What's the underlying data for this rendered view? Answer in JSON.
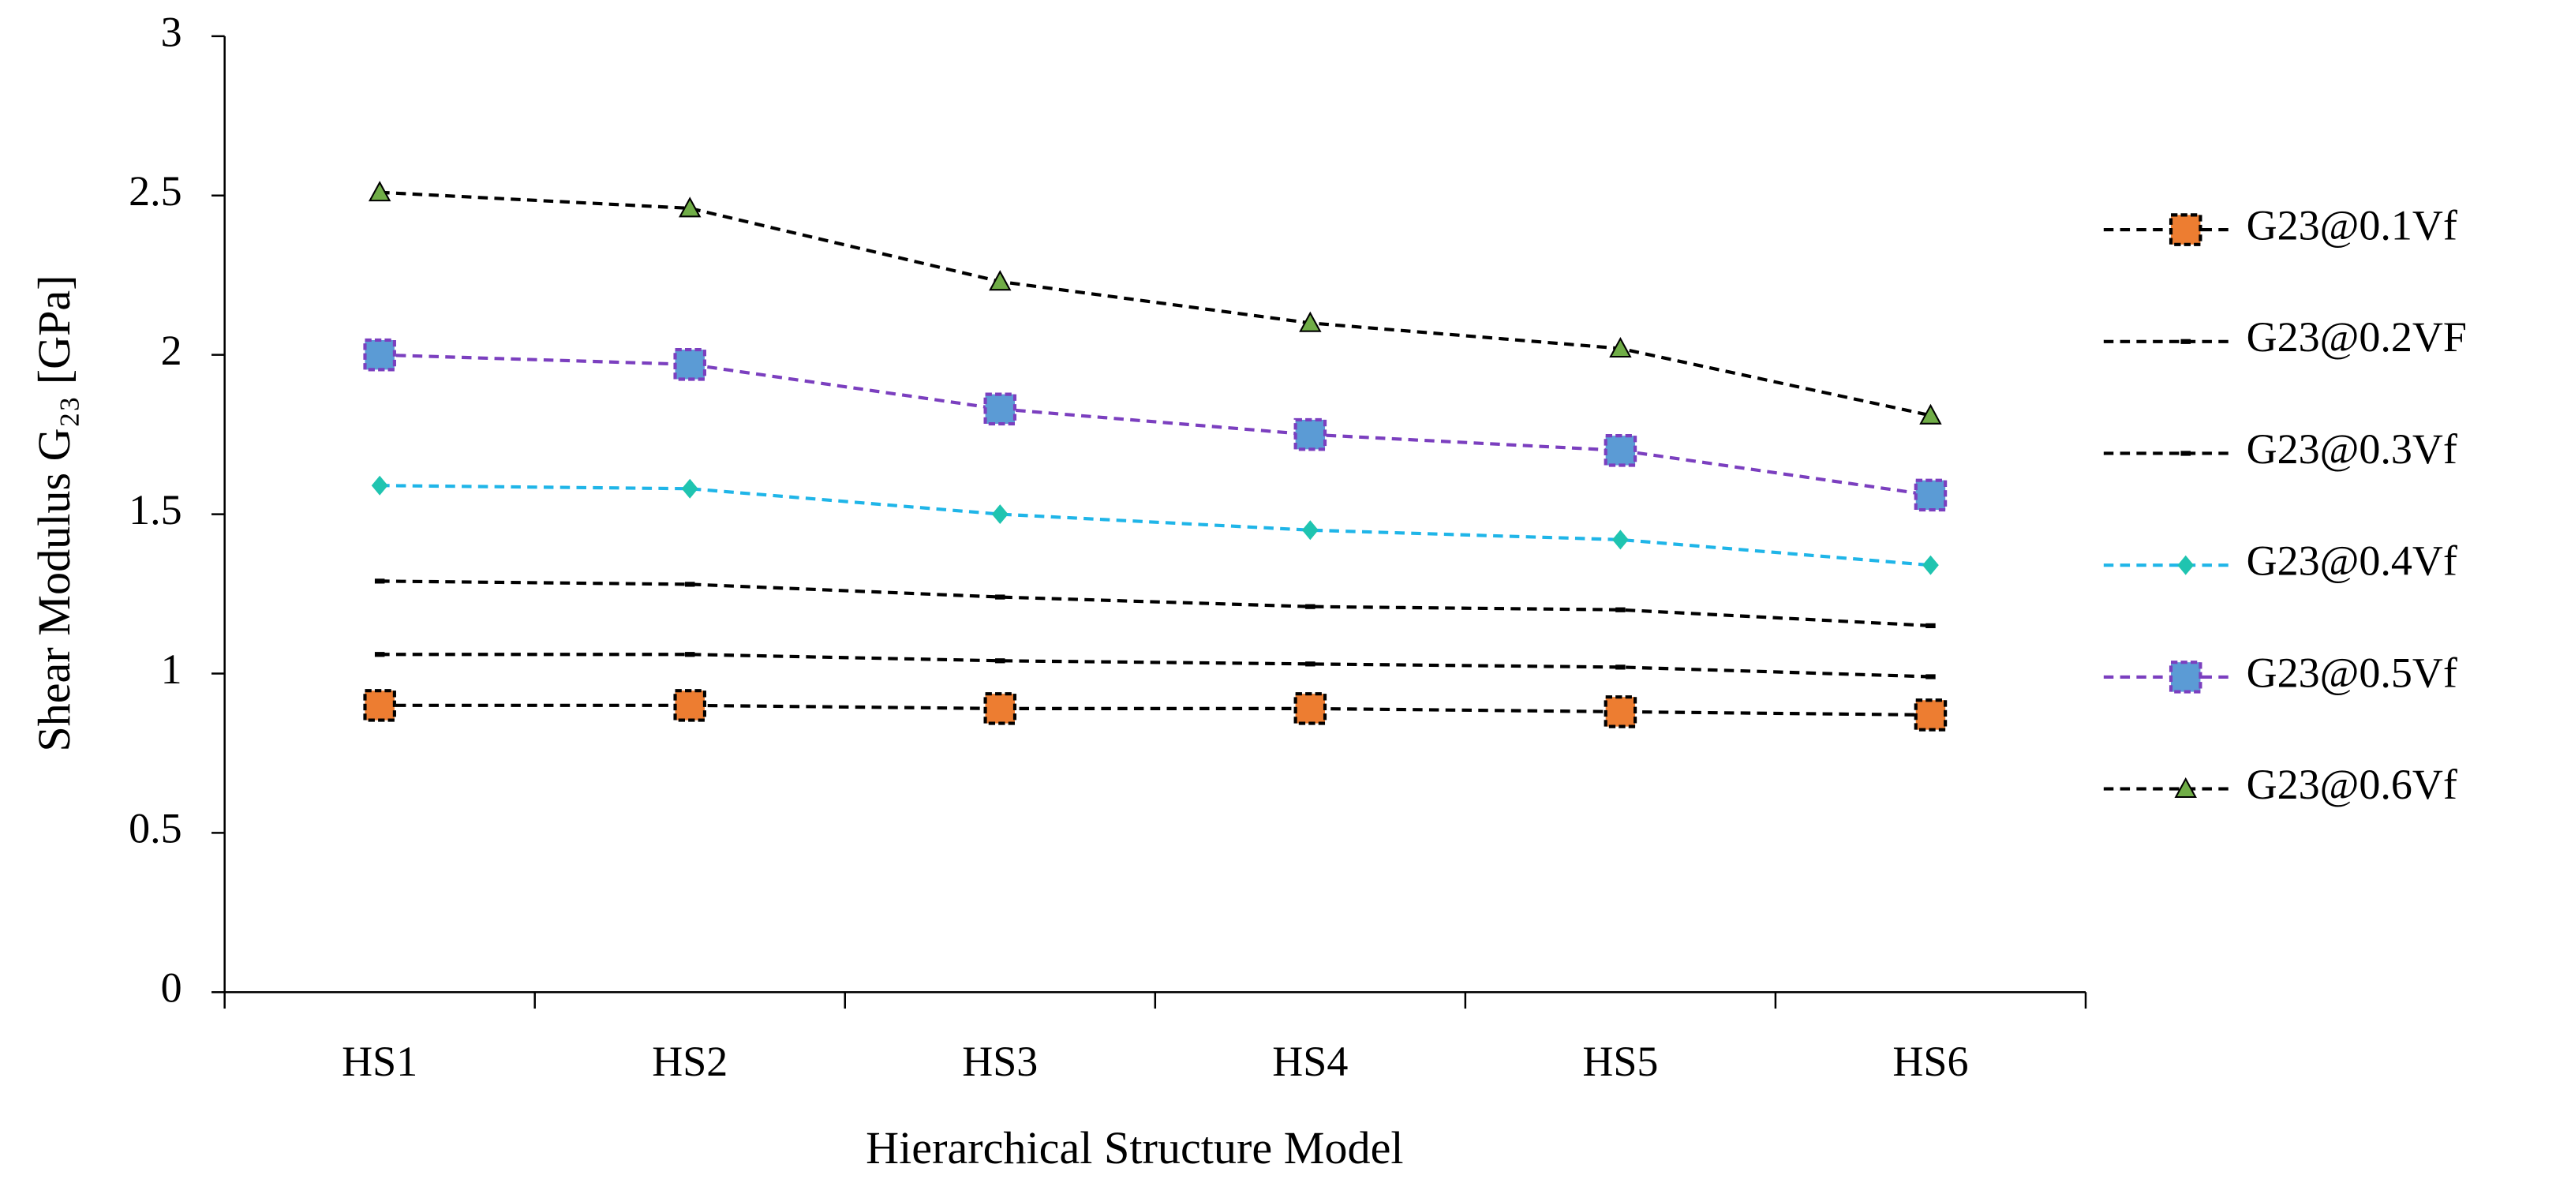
{
  "chart_data": {
    "type": "line",
    "xlabel": "Hierarchical Structure Model",
    "ylabel": "Shear Modulus G₂₃ [GPa]",
    "categories": [
      "HS1",
      "HS2",
      "HS3",
      "HS4",
      "HS5",
      "HS6"
    ],
    "ylim": [
      0,
      3
    ],
    "yticks": [
      0,
      0.5,
      1,
      1.5,
      2,
      2.5,
      3
    ],
    "grid": false,
    "legend": "right",
    "series": [
      {
        "name": "G23@0.1Vf",
        "color": "#000000",
        "marker": "square",
        "marker_color": "#ed7d31",
        "values": [
          0.9,
          0.9,
          0.89,
          0.89,
          0.88,
          0.87
        ]
      },
      {
        "name": "G23@0.2VF",
        "color": "#000000",
        "marker": "dash",
        "marker_color": "#000000",
        "values": [
          1.06,
          1.06,
          1.04,
          1.03,
          1.02,
          0.99
        ]
      },
      {
        "name": "G23@0.3Vf",
        "color": "#000000",
        "marker": "dash",
        "marker_color": "#000000",
        "values": [
          1.29,
          1.28,
          1.24,
          1.21,
          1.2,
          1.15
        ]
      },
      {
        "name": "G23@0.4Vf",
        "color": "#1fb5e8",
        "marker": "diamond",
        "marker_color": "#1fc4b0",
        "values": [
          1.59,
          1.58,
          1.5,
          1.45,
          1.42,
          1.34
        ]
      },
      {
        "name": "G23@0.5Vf",
        "color": "#7b3fbf",
        "marker": "square",
        "marker_color": "#5b9bd5",
        "values": [
          2.0,
          1.97,
          1.83,
          1.75,
          1.7,
          1.56
        ]
      },
      {
        "name": "G23@0.6Vf",
        "color": "#000000",
        "marker": "triangle",
        "marker_color": "#70ad47",
        "values": [
          2.51,
          2.46,
          2.23,
          2.1,
          2.02,
          1.81
        ]
      }
    ]
  }
}
